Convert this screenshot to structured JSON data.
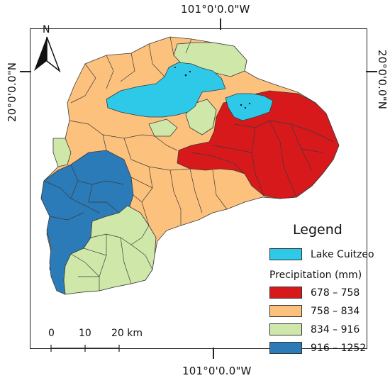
{
  "coords": {
    "top": "101°0'0.0\"W",
    "bottom": "101°0'0.0\"W",
    "left": "20°0'0.0\"N",
    "right": "20°0'0.0\"N"
  },
  "north_arrow": {
    "label": "N",
    "icon": "north-arrow-icon"
  },
  "legend": {
    "title": "Legend",
    "lake": {
      "label": "Lake Cuitzeo",
      "color": "#2ec8e8"
    },
    "precip_title": "Precipitation (mm)",
    "classes": [
      {
        "label": "678 – 758",
        "color": "#d7191c"
      },
      {
        "label": "758 – 834",
        "color": "#fdc17e"
      },
      {
        "label": "834 – 916",
        "color": "#cfe8aa"
      },
      {
        "label": "916 – 1252",
        "color": "#2b7bb9"
      }
    ]
  },
  "scale_bar": {
    "labels": [
      "0",
      "10",
      "20 km"
    ]
  }
}
